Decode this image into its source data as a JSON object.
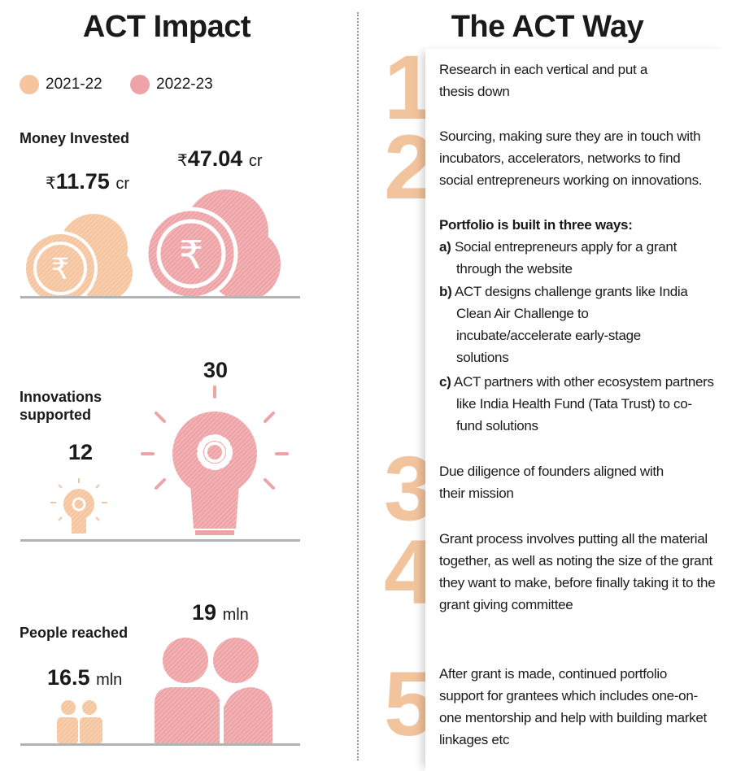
{
  "left": {
    "title": "ACT Impact",
    "legend": [
      {
        "label": "2021-22",
        "color": "#f5c5a0"
      },
      {
        "label": "2022-23",
        "color": "#eea4a7"
      }
    ],
    "money": {
      "label": "Money Invested",
      "v2122": "11.75",
      "v2223": "47.04",
      "currency": "₹",
      "unit": "cr"
    },
    "innovations": {
      "label": "Innovations supported",
      "v2122": "12",
      "v2223": "30"
    },
    "people": {
      "label": "People reached",
      "v2122": "16.5",
      "v2223": "19",
      "unit": "mln"
    }
  },
  "right": {
    "title": "The ACT Way",
    "steps": [
      {
        "n": "1",
        "text": "Research in each vertical and put a thesis down"
      },
      {
        "n": "2",
        "text": "Sourcing, making sure they are in touch with incubators, accelerators, networks to find social entrepreneurs working on innovations.",
        "heading": "Portfolio is built in three ways:",
        "ways": [
          {
            "k": "a)",
            "t": "Social entrepreneurs apply for a grant through the website"
          },
          {
            "k": "b)",
            "t": "ACT designs challenge grants like India Clean Air Challenge to incubate/accelerate early-stage solutions"
          },
          {
            "k": "c)",
            "t": "ACT partners with other ecosystem partners like India Health Fund (Tata Trust) to co-fund solutions"
          }
        ]
      },
      {
        "n": "3",
        "text": "Due diligence of founders aligned with their mission"
      },
      {
        "n": "4",
        "text": "Grant process involves putting all the material together, as well as noting the size of the grant they want to make, before finally taking it to the grant giving committee"
      },
      {
        "n": "5",
        "text": "After grant is made, continued portfolio support for grantees which includes one-on-one mentorship and help with building market linkages etc"
      }
    ]
  }
}
